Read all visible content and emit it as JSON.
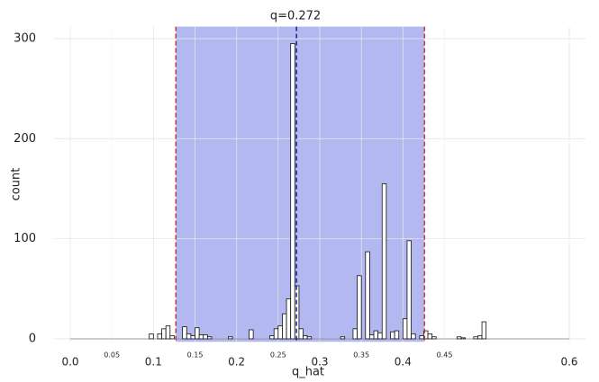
{
  "chart_data": {
    "type": "histogram",
    "title": "q=0.272",
    "x_label": "q_hat",
    "y_label": "count",
    "bins": [
      0.095,
      0.1,
      0.105,
      0.11,
      0.115,
      0.12,
      0.125,
      0.13,
      0.135,
      0.14,
      0.145,
      0.15,
      0.155,
      0.16,
      0.165,
      0.17,
      0.175,
      0.18,
      0.185,
      0.19,
      0.195,
      0.2,
      0.205,
      0.21,
      0.215,
      0.22,
      0.225,
      0.23,
      0.235,
      0.24,
      0.245,
      0.25,
      0.255,
      0.26,
      0.265,
      0.27,
      0.275,
      0.28,
      0.285,
      0.29,
      0.295,
      0.3,
      0.305,
      0.31,
      0.315,
      0.32,
      0.325,
      0.33,
      0.335,
      0.34,
      0.345,
      0.35,
      0.355,
      0.36,
      0.365,
      0.37,
      0.375,
      0.38,
      0.385,
      0.39,
      0.395,
      0.4,
      0.405,
      0.41,
      0.415,
      0.42,
      0.425,
      0.43,
      0.435,
      0.44,
      0.445,
      0.45,
      0.455,
      0.46,
      0.465,
      0.47,
      0.475,
      0.48,
      0.485,
      0.49,
      0.495,
      0.5
    ],
    "values": [
      5,
      0,
      5,
      10,
      13,
      3,
      0,
      0,
      12,
      5,
      3,
      11,
      4,
      4,
      2,
      0,
      0,
      0,
      0,
      2,
      0,
      0,
      0,
      0,
      9,
      0,
      0,
      0,
      0,
      3,
      10,
      13,
      25,
      40,
      295,
      53,
      10,
      3,
      2,
      0,
      0,
      0,
      0,
      0,
      0,
      0,
      2,
      0,
      0,
      10,
      63,
      0,
      87,
      4,
      8,
      6,
      155,
      0,
      7,
      8,
      0,
      20,
      98,
      5,
      0,
      3,
      8,
      5,
      2,
      0,
      0,
      0,
      0,
      0,
      2,
      1,
      0,
      0,
      2,
      3,
      17
    ],
    "color": "#ffffff",
    "edge_color": "#111111",
    "xlim": [
      0,
      0.6
    ],
    "ylim": [
      -3,
      312
    ],
    "xticks": [
      {
        "value": 0,
        "label": "0.0"
      },
      0.1,
      0.2,
      0.3,
      0.4,
      0.6
    ],
    "xticks_minor": [
      0.05,
      0.15,
      0.25,
      0.35,
      0.45
    ],
    "yticks": [
      0,
      100,
      200,
      300
    ],
    "grid": true,
    "interval": [
      0.127,
      0.426
    ],
    "interval_color": "#b3b8f0",
    "interval_line_color": "#c0392b",
    "q": 0.272,
    "q_color": "#1a237e"
  }
}
